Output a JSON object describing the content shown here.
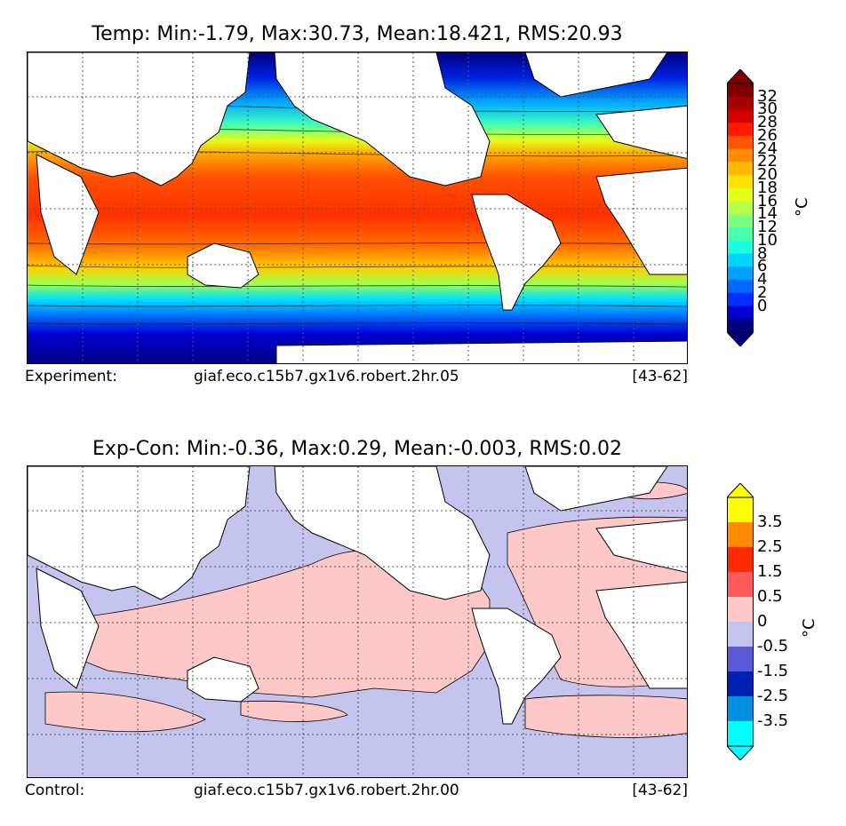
{
  "top_panel": {
    "title": "Temp: Min:-1.79, Max:30.73, Mean:18.421, RMS:20.93",
    "caption_label": "Experiment:",
    "caption_run": "giaf.eco.c15b7.gx1v6.robert.2hr.05",
    "caption_years": "[43-62]",
    "colorbar": {
      "unit": "°C",
      "ticks": [
        "32",
        "30",
        "28",
        "26",
        "24",
        "22",
        "20",
        "18",
        "16",
        "14",
        "12",
        "10",
        "8",
        "6",
        "4",
        "2",
        "0"
      ],
      "colors": [
        "#7f0000",
        "#a80000",
        "#d40000",
        "#ff1a00",
        "#ff5500",
        "#ff8c00",
        "#ffb800",
        "#ffe100",
        "#e6ff1a",
        "#b7ff4a",
        "#7dff7d",
        "#4affb0",
        "#1affe1",
        "#00d4ff",
        "#00a0ff",
        "#0068ff",
        "#0030ff",
        "#0000d0",
        "#00007f"
      ],
      "over_color": "#7f0000",
      "under_color": "#00007f"
    }
  },
  "bottom_panel": {
    "title": "Exp-Con: Min:-0.36, Max:0.29, Mean:-0.003, RMS:0.02",
    "caption_label": "Control:",
    "caption_run": "giaf.eco.c15b7.gx1v6.robert.2hr.00",
    "caption_years": "[43-62]",
    "colorbar": {
      "unit": "°C",
      "ticks": [
        "3.5",
        "2.5",
        "1.5",
        "0.5",
        "0",
        "-0.5",
        "-1.5",
        "-2.5",
        "-3.5"
      ],
      "colors": [
        "#ffff00",
        "#ff8c00",
        "#ff2a00",
        "#ff5a5a",
        "#ffc8c8",
        "#c4c4ee",
        "#5a5ad6",
        "#0020b4",
        "#0090e0",
        "#00ffff"
      ],
      "over_color": "#ffff00",
      "under_color": "#00ffff"
    }
  }
}
